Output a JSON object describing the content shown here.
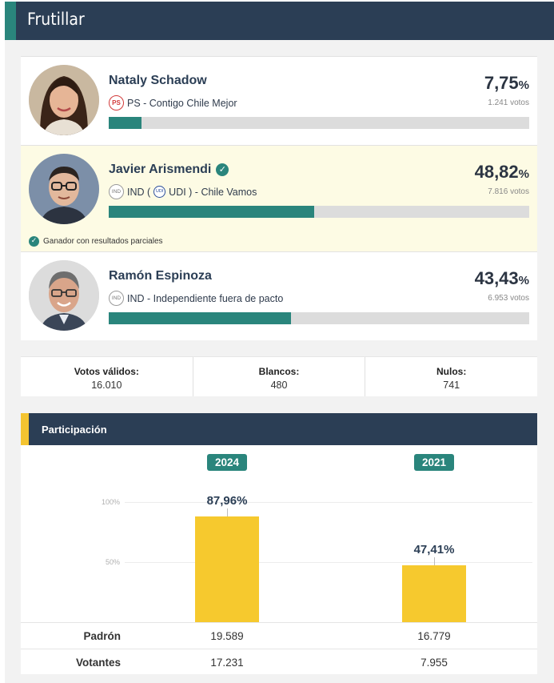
{
  "header": {
    "title": "Frutillar"
  },
  "candidates": [
    {
      "name": "Nataly Schadow",
      "verified": false,
      "party_badge": "PS",
      "party_text": "PS - Contigo Chile Mejor",
      "pct": "7,75",
      "pct_symbol": "%",
      "votes": "1.241 votos",
      "share": 7.75
    },
    {
      "name": "Javier Arismendi",
      "verified": true,
      "party_badge": "IND",
      "party_prefix": "IND (",
      "sub_badge": "UDI",
      "party_suffix": "UDI ) - Chile Vamos",
      "pct": "48,82",
      "pct_symbol": "%",
      "votes": "7.816 votos",
      "share": 48.82,
      "winner_note": "Ganador con resultados parciales"
    },
    {
      "name": "Ramón Espinoza",
      "verified": false,
      "party_badge": "IND",
      "party_text": "IND - Independiente fuera de pacto",
      "pct": "43,43",
      "pct_symbol": "%",
      "votes": "6.953 votos",
      "share": 43.43
    }
  ],
  "totals": {
    "validos_label": "Votos válidos:",
    "validos_value": "16.010",
    "blancos_label": "Blancos:",
    "blancos_value": "480",
    "nulos_label": "Nulos:",
    "nulos_value": "741"
  },
  "participation": {
    "title": "Participación",
    "y_labels": [
      "100%",
      "50%"
    ],
    "years": [
      {
        "year": "2024",
        "pct_label": "87,96%",
        "value": 87.96,
        "padron": "19.589",
        "votantes": "17.231"
      },
      {
        "year": "2021",
        "pct_label": "47,41%",
        "value": 47.41,
        "padron": "16.779",
        "votantes": "7.955"
      }
    ],
    "padron_label": "Padrón",
    "votantes_label": "Votantes"
  },
  "colors": {
    "navy": "#2b3e55",
    "teal": "#2a857c",
    "yellow": "#f6c92e",
    "winner_bg": "#fdfbe4"
  },
  "icons": {
    "verified": "check-circle-icon",
    "avatar": "person-photo"
  }
}
